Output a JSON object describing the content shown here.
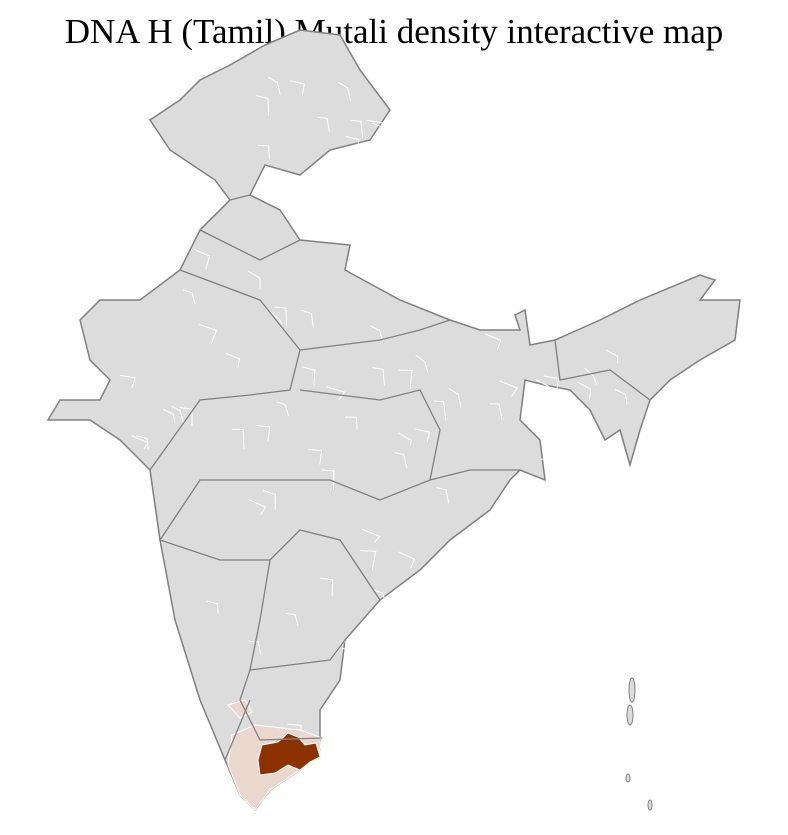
{
  "title": "DNA H (Tamil) Mutali density interactive map",
  "map": {
    "colors": {
      "no_data": "#dcdcdc",
      "state_border": "#808080",
      "district_border": "#ffffff",
      "low_density": "#ead8cf",
      "high_density": "#8b3200"
    }
  }
}
